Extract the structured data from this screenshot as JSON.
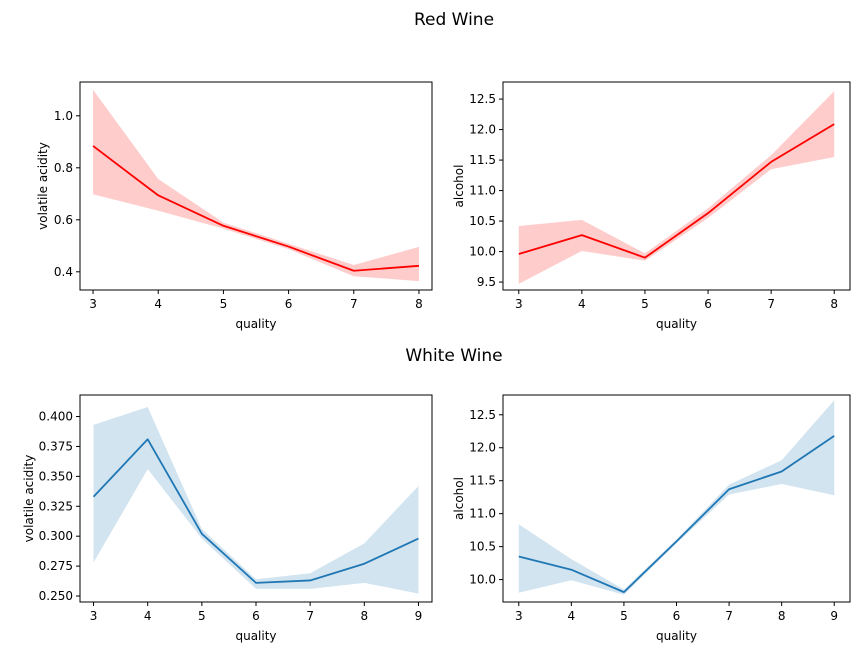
{
  "figure": {
    "titles": [
      "Red Wine",
      "White Wine"
    ]
  },
  "chart_data": [
    {
      "type": "line",
      "group": "Red Wine",
      "x": [
        3,
        4,
        5,
        6,
        7,
        8
      ],
      "y": [
        0.884,
        0.694,
        0.577,
        0.497,
        0.404,
        0.423
      ],
      "ci_low": [
        0.698,
        0.635,
        0.566,
        0.487,
        0.383,
        0.364
      ],
      "ci_high": [
        1.1,
        0.757,
        0.589,
        0.508,
        0.426,
        0.496
      ],
      "xlabel": "quality",
      "ylabel": "volatile acidity",
      "xlim": [
        2.8,
        8.2
      ],
      "ylim": [
        0.33,
        1.13
      ],
      "xticks": [
        3,
        4,
        5,
        6,
        7,
        8
      ],
      "xtick_labels": [
        "3",
        "4",
        "5",
        "6",
        "7",
        "8"
      ],
      "yticks": [
        0.4,
        0.6,
        0.8,
        1.0
      ],
      "ytick_labels": [
        "0.4",
        "0.6",
        "0.8",
        "1.0"
      ],
      "color": "#ff0000",
      "grid": false
    },
    {
      "type": "line",
      "group": "Red Wine",
      "x": [
        3,
        4,
        5,
        6,
        7,
        8
      ],
      "y": [
        9.96,
        10.27,
        9.9,
        10.63,
        11.47,
        12.09
      ],
      "ci_low": [
        9.47,
        10.01,
        9.85,
        10.55,
        11.35,
        11.55
      ],
      "ci_high": [
        10.42,
        10.52,
        9.97,
        10.71,
        11.58,
        12.63
      ],
      "xlabel": "quality",
      "ylabel": "alcohol",
      "xlim": [
        2.75,
        8.25
      ],
      "ylim": [
        9.37,
        12.78
      ],
      "xticks": [
        3,
        4,
        5,
        6,
        7,
        8
      ],
      "xtick_labels": [
        "3",
        "4",
        "5",
        "6",
        "7",
        "8"
      ],
      "yticks": [
        9.5,
        10.0,
        10.5,
        11.0,
        11.5,
        12.0,
        12.5
      ],
      "ytick_labels": [
        "9.5",
        "10.0",
        "10.5",
        "11.0",
        "11.5",
        "12.0",
        "12.5"
      ],
      "color": "#ff0000",
      "grid": false
    },
    {
      "type": "line",
      "group": "White Wine",
      "x": [
        3,
        4,
        5,
        6,
        7,
        8,
        9
      ],
      "y": [
        0.333,
        0.381,
        0.302,
        0.261,
        0.263,
        0.277,
        0.298
      ],
      "ci_low": [
        0.278,
        0.356,
        0.298,
        0.256,
        0.256,
        0.261,
        0.252
      ],
      "ci_high": [
        0.393,
        0.408,
        0.306,
        0.264,
        0.269,
        0.294,
        0.342
      ],
      "xlabel": "quality",
      "ylabel": "volatile acidity",
      "xlim": [
        2.75,
        9.25
      ],
      "ylim": [
        0.245,
        0.418
      ],
      "xticks": [
        3,
        4,
        5,
        6,
        7,
        8,
        9
      ],
      "xtick_labels": [
        "3",
        "4",
        "5",
        "6",
        "7",
        "8",
        "9"
      ],
      "yticks": [
        0.25,
        0.275,
        0.3,
        0.325,
        0.35,
        0.375,
        0.4
      ],
      "ytick_labels": [
        "0.250",
        "0.275",
        "0.300",
        "0.325",
        "0.350",
        "0.375",
        "0.400"
      ],
      "color": "#1f77b4",
      "grid": false
    },
    {
      "type": "line",
      "group": "White Wine",
      "x": [
        3,
        4,
        5,
        6,
        7,
        8,
        9
      ],
      "y": [
        10.35,
        10.15,
        9.81,
        10.58,
        11.37,
        11.64,
        12.18
      ],
      "ci_low": [
        9.8,
        9.99,
        9.77,
        10.55,
        11.29,
        11.45,
        11.28
      ],
      "ci_high": [
        10.84,
        10.31,
        9.85,
        10.61,
        11.44,
        11.81,
        12.72
      ],
      "xlabel": "quality",
      "ylabel": "alcohol",
      "xlim": [
        2.7,
        9.3
      ],
      "ylim": [
        9.66,
        12.8
      ],
      "xticks": [
        3,
        4,
        5,
        6,
        7,
        8,
        9
      ],
      "xtick_labels": [
        "3",
        "4",
        "5",
        "6",
        "7",
        "8",
        "9"
      ],
      "yticks": [
        10.0,
        10.5,
        11.0,
        11.5,
        12.0,
        12.5
      ],
      "ytick_labels": [
        "10.0",
        "10.5",
        "11.0",
        "11.5",
        "12.0",
        "12.5"
      ],
      "color": "#1f77b4",
      "grid": false
    }
  ]
}
